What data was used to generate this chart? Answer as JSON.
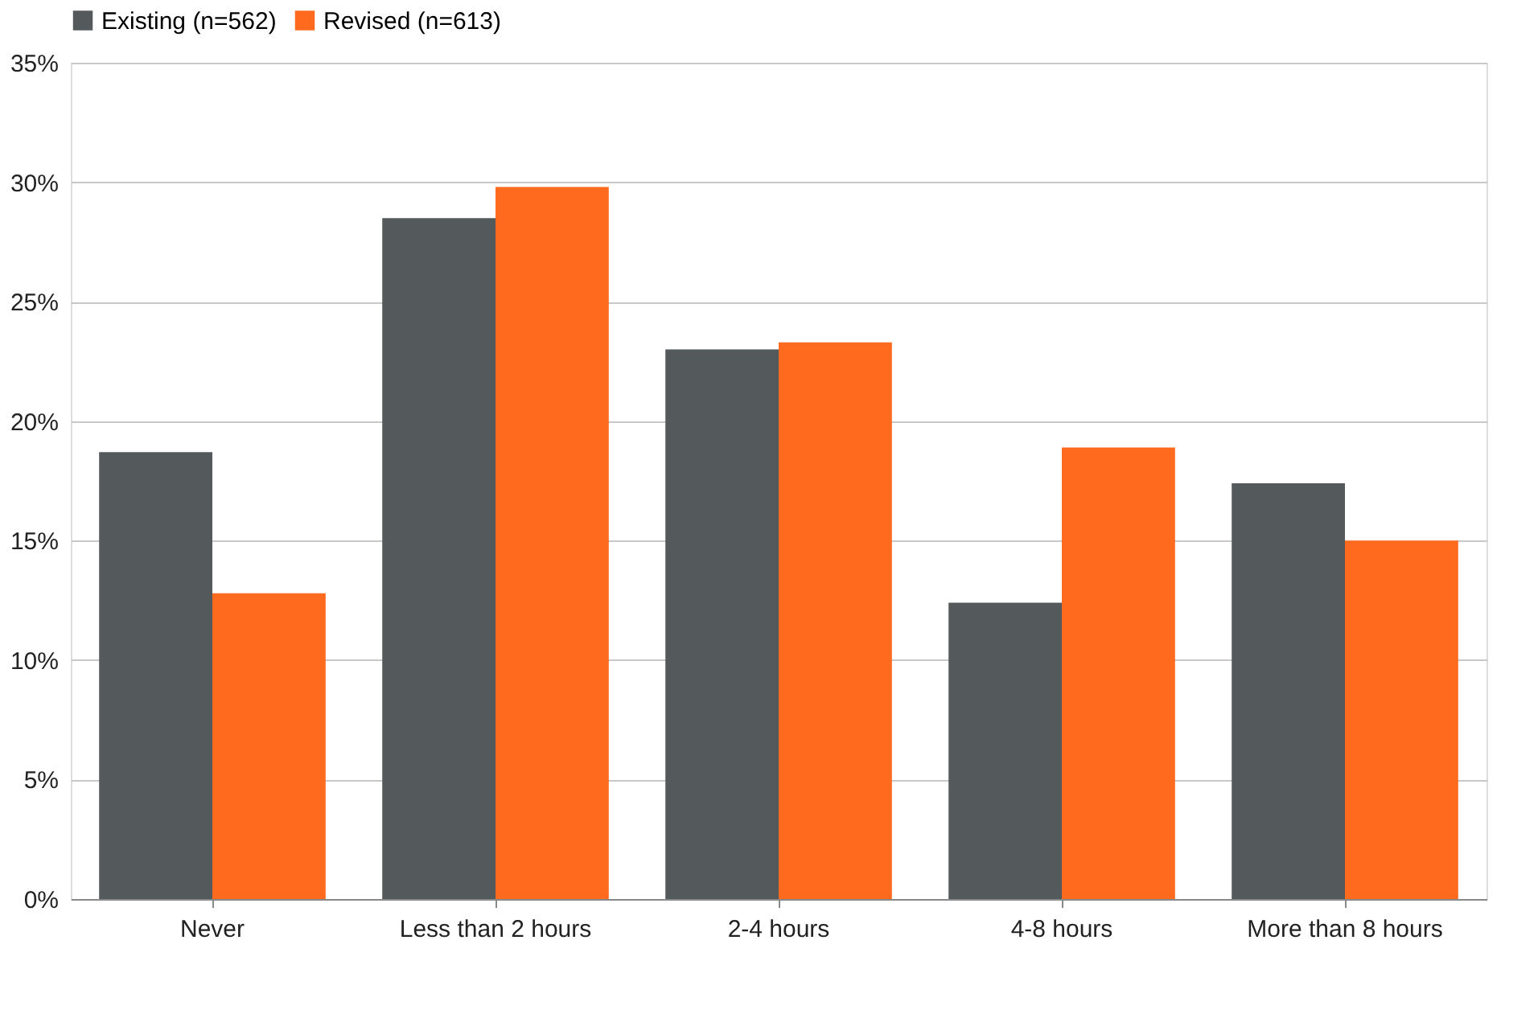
{
  "chart_data": {
    "type": "bar",
    "categories": [
      "Never",
      "Less than 2 hours",
      "2-4 hours",
      "4-8 hours",
      "More than 8 hours"
    ],
    "series": [
      {
        "name": "Existing (n=562)",
        "color": "#545a5c",
        "values": [
          18.7,
          28.5,
          23.0,
          12.4,
          17.4
        ]
      },
      {
        "name": "Revised (n=613)",
        "color": "#ff6a1f",
        "values": [
          12.8,
          29.8,
          23.3,
          18.9,
          15.0
        ]
      }
    ],
    "ylim": [
      0,
      35
    ],
    "yticks": [
      {
        "value": 0,
        "label": "0%"
      },
      {
        "value": 5,
        "label": "5%"
      },
      {
        "value": 10,
        "label": "10%"
      },
      {
        "value": 15,
        "label": "15%"
      },
      {
        "value": 20,
        "label": "20%"
      },
      {
        "value": 25,
        "label": "25%"
      },
      {
        "value": 30,
        "label": "30%"
      },
      {
        "value": 35,
        "label": "35%"
      }
    ],
    "grid": "y",
    "legend": "top"
  }
}
